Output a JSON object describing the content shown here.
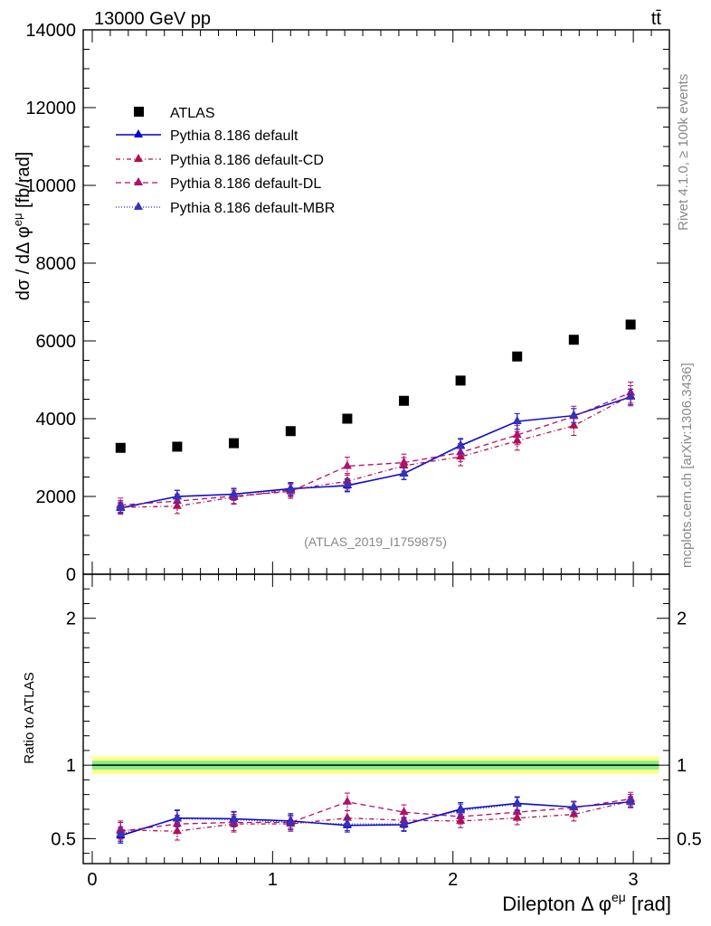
{
  "header": {
    "energy_label": "13000 GeV pp",
    "process_label": "tt̄"
  },
  "side_text": {
    "rivet": "Rivet 4.1.0, ≥ 100k events",
    "mcplots": "mcplots.cern.ch [arXiv:1306.3436]"
  },
  "analysis_tag": "(ATLAS_2019_I1759875)",
  "colors": {
    "atlas": "#000000",
    "default": "#0000cc",
    "cd": "#b0104f",
    "dl": "#b01070",
    "mbr": "#3333bb",
    "band_outer": "#ffff88",
    "band_inner": "#88ee88"
  },
  "chart_data": [
    {
      "type": "scatter",
      "panel": "main",
      "ylabel": "dσ / dΔφeμ [fb/rad]",
      "ylim": [
        0,
        14000
      ],
      "yticks": [
        0,
        2000,
        4000,
        6000,
        8000,
        10000,
        12000,
        14000
      ],
      "ytick_labels": [
        "0",
        "2000",
        "4000",
        "6000",
        "8000",
        "10000",
        "12000",
        "14000"
      ],
      "xlim": [
        -0.05,
        3.2
      ],
      "x": [
        0.157,
        0.471,
        0.785,
        1.1,
        1.414,
        1.728,
        2.042,
        2.356,
        2.67,
        2.985
      ],
      "legend": [
        "ATLAS",
        "Pythia 8.186 default",
        "Pythia 8.186 default-CD",
        "Pythia 8.186 default-DL",
        "Pythia 8.186 default-MBR"
      ],
      "series": [
        {
          "name": "ATLAS",
          "values": [
            3250,
            3280,
            3370,
            3680,
            4000,
            4460,
            4980,
            5600,
            6030,
            6420
          ]
        },
        {
          "name": "Pythia 8.186 default",
          "values": [
            1700,
            2000,
            2060,
            2200,
            2280,
            2590,
            3310,
            3930,
            4080,
            4560
          ],
          "errors": [
            130,
            160,
            150,
            160,
            160,
            150,
            180,
            200,
            180,
            200
          ]
        },
        {
          "name": "Pythia 8.186 default-CD",
          "values": [
            1720,
            1750,
            1980,
            2170,
            2390,
            2790,
            3020,
            3430,
            3820,
            4590
          ],
          "errors": [
            180,
            190,
            180,
            180,
            200,
            210,
            230,
            240,
            250,
            260
          ]
        },
        {
          "name": "Pythia 8.186 default-DL",
          "values": [
            1780,
            1880,
            2010,
            2130,
            2780,
            2870,
            3130,
            3580,
            4060,
            4670
          ],
          "errors": [
            180,
            180,
            190,
            180,
            230,
            220,
            230,
            250,
            260,
            270
          ]
        },
        {
          "name": "Pythia 8.186 default-MBR",
          "values": [
            1720,
            1990,
            2050,
            2180,
            2300,
            2580,
            3290,
            3930,
            4080,
            4560
          ],
          "errors": [
            140,
            160,
            150,
            160,
            160,
            150,
            180,
            200,
            180,
            200
          ]
        }
      ]
    },
    {
      "type": "scatter",
      "panel": "ratio",
      "ylabel": "Ratio to ATLAS",
      "xlabel": "Dilepton Δ φeμ [rad]",
      "ylim": [
        0.33,
        2.3
      ],
      "yticks": [
        0.5,
        1,
        2
      ],
      "ytick_labels": [
        "0.5",
        "1",
        "2"
      ],
      "xlim": [
        -0.05,
        3.2
      ],
      "xticks": [
        0,
        1,
        2,
        3
      ],
      "xtick_labels": [
        "0",
        "1",
        "2",
        "3"
      ],
      "x": [
        0.157,
        0.471,
        0.785,
        1.1,
        1.414,
        1.728,
        2.042,
        2.356,
        2.67,
        2.985
      ],
      "band": {
        "outer": [
          0.94,
          1.06
        ],
        "inner": [
          0.97,
          1.03
        ]
      },
      "series": [
        {
          "name": "Pythia 8.186 default",
          "values": [
            0.52,
            0.64,
            0.635,
            0.62,
            0.59,
            0.595,
            0.7,
            0.74,
            0.715,
            0.75
          ],
          "errors": [
            0.05,
            0.055,
            0.05,
            0.05,
            0.045,
            0.045,
            0.045,
            0.045,
            0.035,
            0.035
          ]
        },
        {
          "name": "Pythia 8.186 default-CD",
          "values": [
            0.56,
            0.55,
            0.6,
            0.6,
            0.64,
            0.625,
            0.62,
            0.64,
            0.665,
            0.755
          ],
          "errors": [
            0.06,
            0.06,
            0.055,
            0.05,
            0.05,
            0.05,
            0.045,
            0.045,
            0.045,
            0.045
          ]
        },
        {
          "name": "Pythia 8.186 default-DL",
          "values": [
            0.55,
            0.6,
            0.61,
            0.61,
            0.75,
            0.68,
            0.65,
            0.68,
            0.71,
            0.77
          ],
          "errors": [
            0.06,
            0.06,
            0.055,
            0.05,
            0.06,
            0.05,
            0.05,
            0.045,
            0.045,
            0.045
          ]
        },
        {
          "name": "Pythia 8.186 default-MBR",
          "values": [
            0.53,
            0.635,
            0.63,
            0.61,
            0.6,
            0.6,
            0.69,
            0.735,
            0.715,
            0.75
          ],
          "errors": [
            0.05,
            0.055,
            0.05,
            0.05,
            0.045,
            0.045,
            0.045,
            0.045,
            0.035,
            0.035
          ]
        }
      ]
    }
  ]
}
